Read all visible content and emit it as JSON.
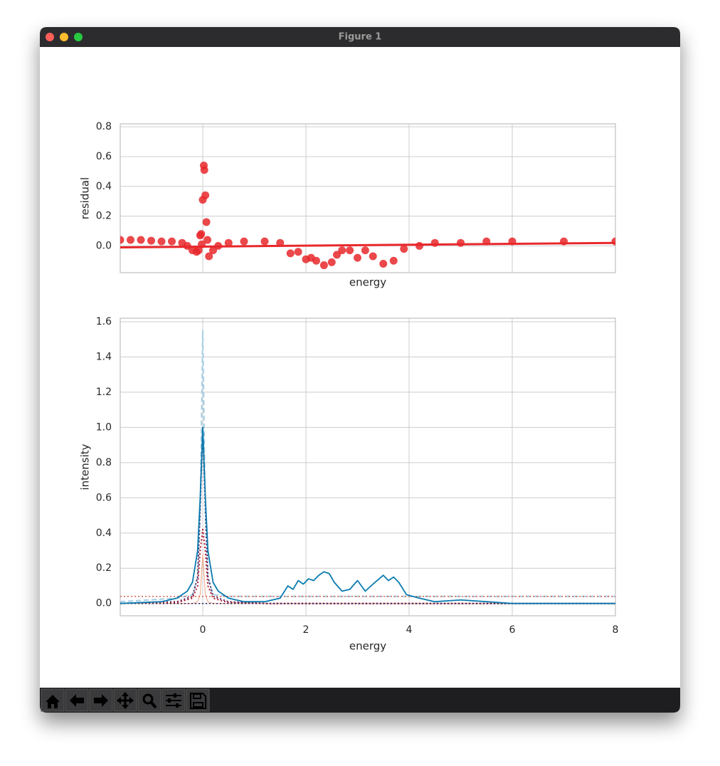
{
  "window": {
    "title": "Figure 1"
  },
  "chart_data": [
    {
      "type": "scatter",
      "xlabel": "energy",
      "ylabel": "residual",
      "xlim": [
        -1.6,
        8
      ],
      "ylim": [
        -0.18,
        0.82
      ],
      "yticks": [
        {
          "value": 0,
          "label": "0.0"
        },
        0.2,
        0.4,
        0.6,
        0.8
      ],
      "grid": true,
      "series": [
        {
          "type": "scatter",
          "color": "#e8282b",
          "x": [
            -1.6,
            -1.4,
            -1.2,
            -1.0,
            -0.8,
            -0.6,
            -0.4,
            -0.3,
            -0.2,
            -0.12,
            -0.08,
            -0.05,
            -0.03,
            -0.02,
            0,
            0.02,
            0.03,
            0.05,
            0.07,
            0.09,
            0.12,
            0.2,
            0.3,
            0.5,
            0.8,
            1.2,
            1.5,
            1.7,
            1.85,
            2.0,
            2.1,
            2.2,
            2.35,
            2.5,
            2.6,
            2.7,
            2.85,
            3.0,
            3.15,
            3.3,
            3.5,
            3.7,
            3.9,
            4.2,
            4.5,
            5.0,
            5.5,
            6.0,
            7.0,
            8.0
          ],
          "values": [
            0.04,
            0.04,
            0.04,
            0.035,
            0.03,
            0.03,
            0.02,
            0.0,
            -0.03,
            -0.04,
            -0.03,
            0.07,
            0.08,
            0.01,
            0.31,
            0.54,
            0.51,
            0.34,
            0.16,
            0.04,
            -0.07,
            -0.03,
            0.0,
            0.02,
            0.03,
            0.03,
            0.02,
            -0.05,
            -0.04,
            -0.09,
            -0.08,
            -0.1,
            -0.13,
            -0.11,
            -0.06,
            -0.03,
            -0.03,
            -0.08,
            -0.03,
            -0.07,
            -0.12,
            -0.1,
            -0.02,
            0.0,
            0.02,
            0.02,
            0.03,
            0.03,
            0.03,
            0.03
          ]
        },
        {
          "type": "line",
          "style": "solid",
          "width": 3,
          "color": "#e8282b",
          "x": [
            -1.6,
            8
          ],
          "values": [
            -0.01,
            0.02
          ]
        }
      ]
    },
    {
      "type": "line",
      "xlabel": "energy",
      "ylabel": "intensity",
      "xlim": [
        -1.6,
        8
      ],
      "ylim": [
        -0.07,
        1.62
      ],
      "xticks": [
        0,
        2,
        4,
        6,
        8
      ],
      "yticks": [
        {
          "value": 0,
          "label": "0.0"
        },
        0.2,
        0.4,
        0.6,
        0.8,
        {
          "value": 1,
          "label": "1.0"
        },
        1.2,
        1.4,
        1.6
      ],
      "grid": true,
      "series": [
        {
          "type": "line",
          "style": "dashed",
          "width": 2,
          "color": "#a6cee3",
          "x": [
            -1.6,
            -0.5,
            -0.2,
            -0.1,
            -0.05,
            0,
            0.05,
            0.1,
            0.2,
            0.5,
            1.2,
            8
          ],
          "values": [
            0.01,
            0.03,
            0.05,
            0.15,
            0.5,
            1.55,
            0.5,
            0.15,
            0.05,
            0.04,
            0.04,
            0.04
          ]
        },
        {
          "type": "line",
          "style": "dotted",
          "width": 2,
          "color": "#4a1f5e",
          "x": [
            -1.6,
            -0.5,
            -0.2,
            -0.1,
            -0.05,
            0,
            0.05,
            0.1,
            0.2,
            0.5,
            1.2,
            8
          ],
          "values": [
            0,
            0.01,
            0.04,
            0.15,
            0.55,
            1.0,
            0.55,
            0.15,
            0.04,
            0.01,
            0,
            0
          ]
        },
        {
          "type": "line",
          "style": "dotted",
          "width": 2,
          "color": "#b2182b",
          "x": [
            -1.6,
            -0.5,
            -0.2,
            -0.1,
            -0.05,
            0,
            0.05,
            0.1,
            0.2,
            0.5,
            1.2,
            8
          ],
          "values": [
            0,
            0.005,
            0.03,
            0.1,
            0.3,
            0.42,
            0.3,
            0.1,
            0.03,
            0.005,
            0,
            0
          ]
        },
        {
          "type": "line",
          "style": "solid",
          "width": 1,
          "color": "#f4a582",
          "x": [
            -1.6,
            -0.5,
            -0.2,
            -0.1,
            -0.05,
            0,
            0.05,
            0.1,
            0.2,
            0.5,
            1.2,
            8
          ],
          "values": [
            0,
            0,
            0,
            0.01,
            0.05,
            0.28,
            0.05,
            0.01,
            0,
            0,
            0,
            0
          ]
        },
        {
          "type": "line",
          "style": "dotted",
          "width": 1.5,
          "color": "#d6604d",
          "x": [
            -1.6,
            8
          ],
          "values": [
            0.04,
            0.04
          ]
        },
        {
          "type": "line",
          "style": "dotted",
          "width": 1.5,
          "color": "#2a2a6e",
          "x": [
            -1.6,
            8
          ],
          "values": [
            0,
            0
          ]
        },
        {
          "type": "line",
          "style": "solid",
          "width": 1.8,
          "color": "#0a7bb0",
          "x": [
            -1.6,
            -1.2,
            -0.8,
            -0.5,
            -0.3,
            -0.2,
            -0.1,
            -0.05,
            0,
            0.05,
            0.1,
            0.2,
            0.3,
            0.5,
            0.8,
            1.2,
            1.5,
            1.65,
            1.75,
            1.85,
            1.95,
            2.05,
            2.15,
            2.25,
            2.35,
            2.45,
            2.55,
            2.7,
            2.85,
            3.0,
            3.15,
            3.3,
            3.5,
            3.6,
            3.7,
            3.8,
            3.95,
            4.2,
            4.5,
            5.0,
            5.5,
            6.0,
            7.0,
            8.0
          ],
          "values": [
            0.0,
            0.005,
            0.01,
            0.03,
            0.07,
            0.12,
            0.3,
            0.6,
            1.0,
            0.6,
            0.3,
            0.12,
            0.07,
            0.03,
            0.01,
            0.01,
            0.03,
            0.1,
            0.08,
            0.13,
            0.11,
            0.14,
            0.13,
            0.16,
            0.18,
            0.17,
            0.12,
            0.07,
            0.08,
            0.13,
            0.07,
            0.11,
            0.16,
            0.13,
            0.15,
            0.12,
            0.05,
            0.03,
            0.01,
            0.02,
            0.01,
            0.0,
            0.0,
            0.0
          ]
        }
      ]
    }
  ]
}
